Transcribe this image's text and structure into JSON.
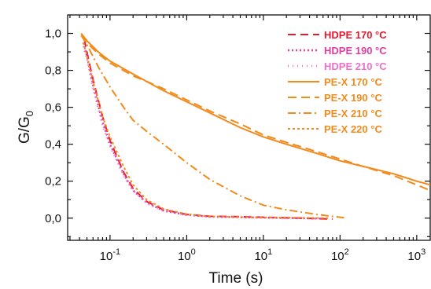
{
  "chart_data": {
    "type": "line",
    "xlabel": "Time (s)",
    "ylabel_main": "G/G",
    "ylabel_sub": "0",
    "x_scale": "log",
    "xlim": [
      0.028,
      1500
    ],
    "ylim": [
      -0.12,
      1.1
    ],
    "grid": false,
    "legend_placement": "top-right",
    "x_ticks": [
      {
        "value": 0.1,
        "base": "10",
        "exp": "-1"
      },
      {
        "value": 1,
        "base": "10",
        "exp": "0"
      },
      {
        "value": 10,
        "base": "10",
        "exp": "1"
      },
      {
        "value": 100,
        "base": "10",
        "exp": "2"
      },
      {
        "value": 1000,
        "base": "10",
        "exp": "3"
      }
    ],
    "y_ticks": [
      {
        "value": 0.0,
        "label": "0,0"
      },
      {
        "value": 0.2,
        "label": "0,2"
      },
      {
        "value": 0.4,
        "label": "0,4"
      },
      {
        "value": 0.6,
        "label": "0,6"
      },
      {
        "value": 0.8,
        "label": "0,8"
      },
      {
        "value": 1.0,
        "label": "1,0"
      }
    ],
    "series": [
      {
        "name": "HDPE 170 °C",
        "color": "#e8192c",
        "dash": "10,6",
        "width": 2,
        "x": [
          0.046,
          0.05,
          0.06,
          0.08,
          0.1,
          0.15,
          0.2,
          0.3,
          0.5,
          1,
          2,
          5,
          10,
          30,
          80
        ],
        "y": [
          0.97,
          0.9,
          0.75,
          0.55,
          0.42,
          0.25,
          0.16,
          0.09,
          0.045,
          0.02,
          0.01,
          0.008,
          0.005,
          0.0,
          -0.005
        ]
      },
      {
        "name": "HDPE 190 °C",
        "color": "#e23ea1",
        "dash": "2,3",
        "width": 2.5,
        "x": [
          0.045,
          0.05,
          0.06,
          0.08,
          0.1,
          0.15,
          0.2,
          0.3,
          0.5,
          1,
          2,
          5,
          10,
          30,
          60
        ],
        "y": [
          0.95,
          0.88,
          0.72,
          0.52,
          0.4,
          0.24,
          0.15,
          0.085,
          0.04,
          0.018,
          0.008,
          0.005,
          0.003,
          0.0,
          -0.003
        ]
      },
      {
        "name": "HDPE 210 °C",
        "color": "#ef70c8",
        "dash": "1,5",
        "width": 2.5,
        "x": [
          0.045,
          0.05,
          0.06,
          0.08,
          0.1,
          0.15,
          0.2,
          0.3,
          0.5,
          1,
          2,
          5,
          10,
          30
        ],
        "y": [
          0.93,
          0.86,
          0.7,
          0.5,
          0.39,
          0.23,
          0.15,
          0.08,
          0.04,
          0.017,
          0.008,
          0.004,
          0.002,
          0.0
        ]
      },
      {
        "name": "PE-X 170 °C",
        "color": "#f28a1c",
        "dash": "",
        "width": 2,
        "x": [
          0.042,
          0.05,
          0.07,
          0.1,
          0.2,
          0.3,
          0.5,
          1,
          2,
          5,
          10,
          20,
          50,
          100,
          200,
          500,
          1000,
          1500
        ],
        "y": [
          1.0,
          0.96,
          0.9,
          0.85,
          0.78,
          0.74,
          0.69,
          0.63,
          0.57,
          0.49,
          0.44,
          0.4,
          0.35,
          0.31,
          0.28,
          0.24,
          0.2,
          0.18
        ]
      },
      {
        "name": "PE-X 190 °C",
        "color": "#f28a1c",
        "dash": "11,6",
        "width": 2,
        "x": [
          0.042,
          0.05,
          0.07,
          0.1,
          0.2,
          0.3,
          0.5,
          1,
          2,
          5,
          10,
          20,
          50,
          100,
          200,
          500,
          1000,
          1500
        ],
        "y": [
          0.99,
          0.95,
          0.89,
          0.84,
          0.77,
          0.74,
          0.7,
          0.64,
          0.58,
          0.51,
          0.45,
          0.41,
          0.36,
          0.32,
          0.28,
          0.23,
          0.18,
          0.15
        ]
      },
      {
        "name": "PE-X 210 °C",
        "color": "#f28a1c",
        "dash": "10,4,2,4",
        "width": 2,
        "x": [
          0.042,
          0.05,
          0.07,
          0.1,
          0.15,
          0.2,
          0.3,
          0.5,
          1,
          2,
          5,
          10,
          20,
          50,
          100,
          120
        ],
        "y": [
          0.99,
          0.94,
          0.82,
          0.71,
          0.6,
          0.53,
          0.47,
          0.4,
          0.3,
          0.21,
          0.12,
          0.07,
          0.045,
          0.02,
          0.005,
          0.0
        ]
      },
      {
        "name": "PE-X 220 °C",
        "color": "#f28a1c",
        "dash": "3,3",
        "width": 2,
        "x": [
          0.045,
          0.05,
          0.06,
          0.08,
          0.1,
          0.15,
          0.2,
          0.3,
          0.5,
          1,
          2,
          5,
          10,
          30,
          70
        ],
        "y": [
          0.95,
          0.88,
          0.74,
          0.55,
          0.44,
          0.28,
          0.18,
          0.1,
          0.05,
          0.022,
          0.01,
          0.006,
          0.004,
          0.002,
          0.0
        ]
      }
    ]
  }
}
